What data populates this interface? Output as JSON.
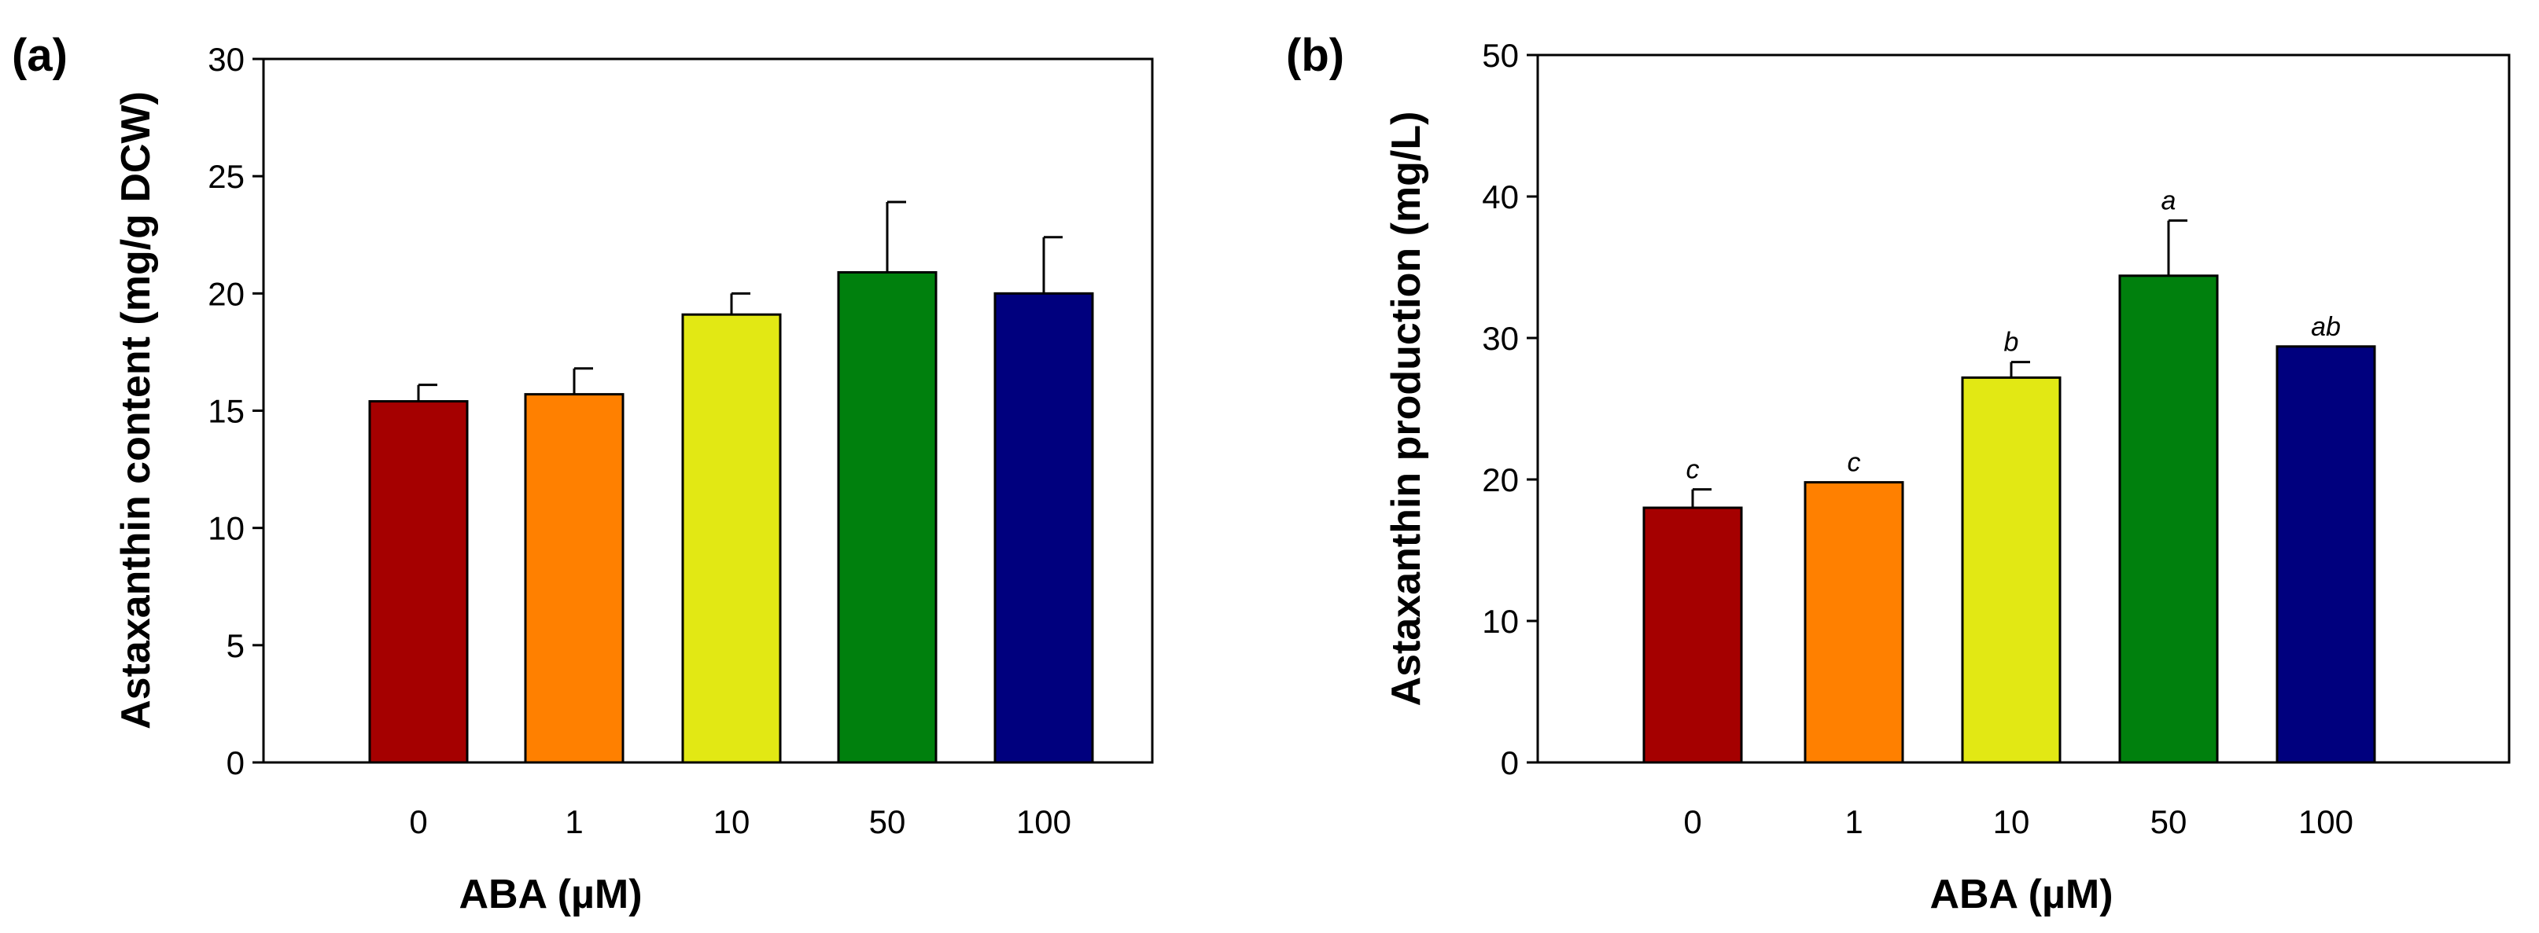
{
  "chart_data": [
    {
      "type": "bar",
      "panel_label": "(a)",
      "categories": [
        "0",
        "1",
        "10",
        "50",
        "100"
      ],
      "values": [
        15.4,
        15.7,
        19.1,
        20.9,
        20.0
      ],
      "errors": [
        0.7,
        1.1,
        0.9,
        3.0,
        2.4
      ],
      "colors": [
        "#a50000",
        "#ff8000",
        "#e2e814",
        "#00800d",
        "#00007e"
      ],
      "significance": [],
      "xlabel": "ABA (µM)",
      "ylabel": "Astaxanthin content (mg/g DCW)",
      "ylim": [
        0,
        30
      ],
      "yticks": [
        0,
        5,
        10,
        15,
        20,
        25,
        30
      ]
    },
    {
      "type": "bar",
      "panel_label": "(b)",
      "categories": [
        "0",
        "1",
        "10",
        "50",
        "100"
      ],
      "values": [
        18.0,
        19.8,
        27.2,
        34.4,
        29.4
      ],
      "errors": [
        1.3,
        0.0,
        1.1,
        3.9,
        0.0
      ],
      "colors": [
        "#a50000",
        "#ff8000",
        "#e2e814",
        "#00800d",
        "#00007e"
      ],
      "significance": [
        "c",
        "c",
        "b",
        "a",
        "ab"
      ],
      "xlabel": "ABA (µM)",
      "ylabel": "Astaxanthin production (mg/L)",
      "ylim": [
        0,
        50
      ],
      "yticks": [
        0,
        10,
        20,
        30,
        40,
        50
      ]
    }
  ]
}
